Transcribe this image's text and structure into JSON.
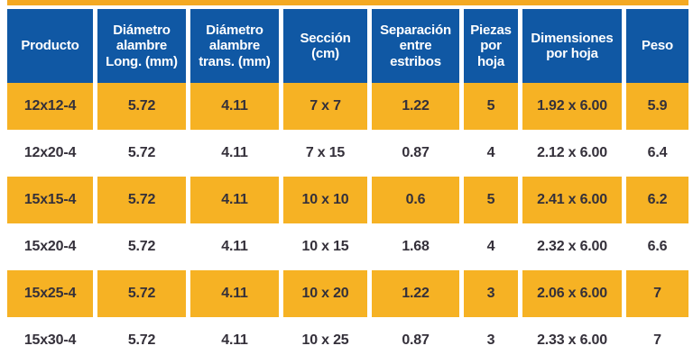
{
  "colors": {
    "header_bg": "#1058a4",
    "row_highlight": "#f6b224",
    "accent_bar": "#f4a922",
    "header_text": "#ffffff",
    "data_text": "#34303a"
  },
  "table": {
    "columns": [
      "Producto",
      "Diámetro\nalambre\nLong. (mm)",
      "Diámetro\nalambre\ntrans. (mm)",
      "Sección\n(cm)",
      "Separación\nentre\nestribos",
      "Piezas\npor\nhoja",
      "Dimensiones\npor hoja",
      "Peso"
    ],
    "rows": [
      [
        "12x12-4",
        "5.72",
        "4.11",
        "7 x 7",
        "1.22",
        "5",
        "1.92 x 6.00",
        "5.9"
      ],
      [
        "12x20-4",
        "5.72",
        "4.11",
        "7 x 15",
        "0.87",
        "4",
        "2.12 x 6.00",
        "6.4"
      ],
      [
        "15x15-4",
        "5.72",
        "4.11",
        "10 x 10",
        "0.6",
        "5",
        "2.41 x 6.00",
        "6.2"
      ],
      [
        "15x20-4",
        "5.72",
        "4.11",
        "10 x 15",
        "1.68",
        "4",
        "2.32 x 6.00",
        "6.6"
      ],
      [
        "15x25-4",
        "5.72",
        "4.11",
        "10 x 20",
        "1.22",
        "3",
        "2.06 x 6.00",
        "7"
      ],
      [
        "15x30-4",
        "5.72",
        "4.11",
        "10 x 25",
        "0.87",
        "3",
        "2.33 x 6.00",
        "7"
      ]
    ]
  }
}
